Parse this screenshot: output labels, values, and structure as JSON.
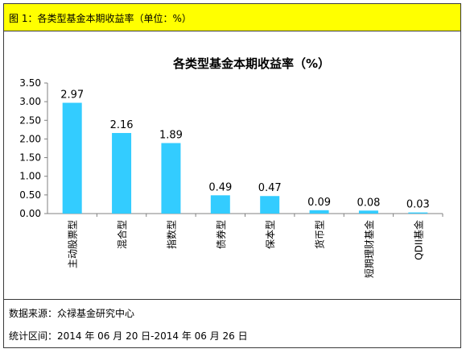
{
  "header": {
    "caption": "图 1：各类型基金本期收益率（单位：%）"
  },
  "chart_data": {
    "type": "bar",
    "title": "各类型基金本期收益率（%）",
    "categories": [
      "主动股票型",
      "混合型",
      "指数型",
      "债券型",
      "保本型",
      "货币型",
      "短期理财基金",
      "QDII基金"
    ],
    "values": [
      2.97,
      2.16,
      1.89,
      0.49,
      0.47,
      0.09,
      0.08,
      0.03
    ],
    "value_labels": [
      "2.97",
      "2.16",
      "1.89",
      "0.49",
      "0.47",
      "0.09",
      "0.08",
      "0.03"
    ],
    "yticks": [
      "0.00",
      "0.50",
      "1.00",
      "1.50",
      "2.00",
      "2.50",
      "3.00",
      "3.50"
    ],
    "ylim": [
      0,
      3.5
    ],
    "grid": false,
    "bar_color": "#33ccff"
  },
  "footer": {
    "source": "数据来源：众禄基金研究中心",
    "period": "统计区间：2014 年 06 月 20 日-2014 年 06 月 26 日"
  }
}
